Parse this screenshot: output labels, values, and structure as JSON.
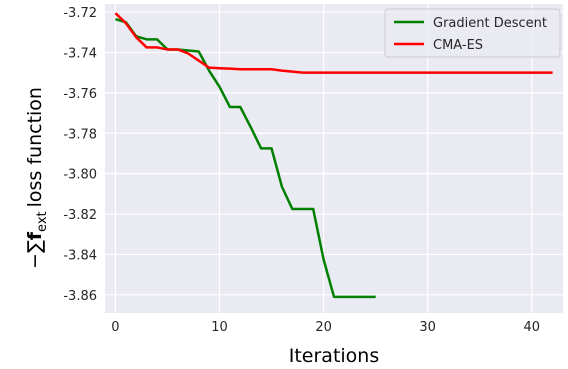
{
  "chart_data": {
    "type": "line",
    "xlabel": "Iterations",
    "ylabel": "loss function",
    "ylabel_math": {
      "lead": "−∑",
      "bold": "f",
      "sub": "ext"
    },
    "xlim": [
      -1,
      43
    ],
    "ylim": [
      -3.869,
      -3.716
    ],
    "xticks": [
      0,
      10,
      20,
      30,
      40
    ],
    "xtick_labels": [
      "0",
      "10",
      "20",
      "30",
      "40"
    ],
    "yticks": [
      -3.72,
      -3.74,
      -3.76,
      -3.78,
      -3.8,
      -3.82,
      -3.84,
      -3.86
    ],
    "ytick_labels": [
      "-3.72",
      "-3.74",
      "-3.76",
      "-3.78",
      "-3.80",
      "-3.82",
      "-3.84",
      "-3.86"
    ],
    "grid": true,
    "legend_position": "top-right",
    "series": [
      {
        "name": "Gradient Descent",
        "color": "#008000",
        "x": [
          0,
          1,
          2,
          3,
          4,
          5,
          6,
          7,
          8,
          9,
          10,
          11,
          12,
          13,
          14,
          15,
          16,
          17,
          18,
          19,
          20,
          21,
          22,
          23,
          24,
          25
        ],
        "y": [
          -3.7235,
          -3.725,
          -3.732,
          -3.7335,
          -3.7335,
          -3.7385,
          -3.7385,
          -3.739,
          -3.7395,
          -3.749,
          -3.757,
          -3.767,
          -3.767,
          -3.777,
          -3.7875,
          -3.7875,
          -3.8065,
          -3.8175,
          -3.8175,
          -3.8175,
          -3.8425,
          -3.861,
          -3.861,
          -3.861,
          -3.861,
          -3.861
        ]
      },
      {
        "name": "CMA-ES",
        "color": "#ff0000",
        "x": [
          0,
          1,
          2,
          3,
          4,
          5,
          6,
          7,
          8,
          9,
          10,
          11,
          12,
          13,
          14,
          15,
          16,
          17,
          18,
          19,
          20,
          25,
          30,
          35,
          40,
          42
        ],
        "y": [
          -3.7205,
          -3.7255,
          -3.7325,
          -3.7375,
          -3.7375,
          -3.7385,
          -3.7385,
          -3.7405,
          -3.744,
          -3.7475,
          -3.7478,
          -3.748,
          -3.7483,
          -3.7483,
          -3.7483,
          -3.7483,
          -3.749,
          -3.7495,
          -3.75,
          -3.75,
          -3.75,
          -3.75,
          -3.75,
          -3.75,
          -3.75,
          -3.75
        ]
      }
    ]
  }
}
